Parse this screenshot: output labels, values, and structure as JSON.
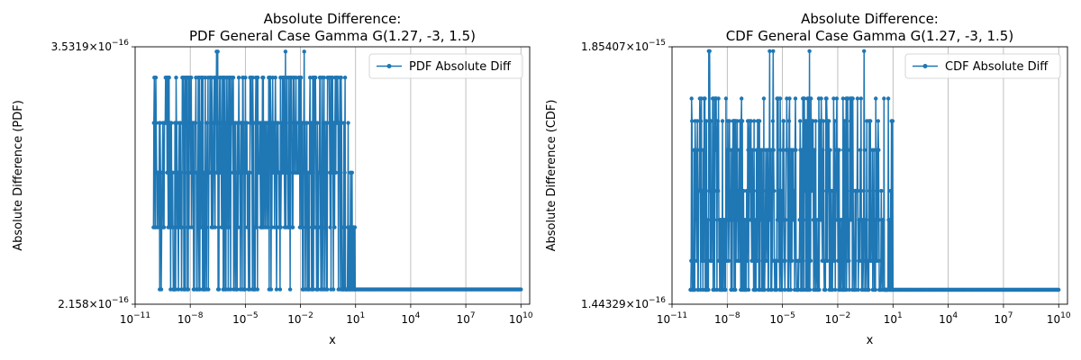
{
  "chart_data": [
    {
      "type": "line",
      "title_line1": "Absolute Difference:",
      "title_line2": "PDF General Case Gamma G(1.27, -3, 1.5)",
      "xlabel": "x",
      "ylabel": "Absolute Difference (PDF)",
      "xscale": "log",
      "yscale": "log",
      "xlim": [
        1e-11,
        30000000000.0
      ],
      "ylim": [
        2.158e-16,
        3.5319e-16
      ],
      "xticks": [
        {
          "exp": "-11",
          "value": 1e-11
        },
        {
          "exp": "-8",
          "value": 1e-08
        },
        {
          "exp": "-5",
          "value": 1e-05
        },
        {
          "exp": "-2",
          "value": 0.01
        },
        {
          "exp": "1",
          "value": 10
        },
        {
          "exp": "4",
          "value": 10000.0
        },
        {
          "exp": "7",
          "value": 10000000.0
        },
        {
          "exp": "10",
          "value": 10000000000.0
        }
      ],
      "yticks": [
        {
          "mantissa": "2.158",
          "exp": "-16",
          "value": 2.158e-16
        },
        {
          "mantissa": "3.5319",
          "exp": "-16",
          "value": 3.5319e-16
        }
      ],
      "grid": "vertical",
      "legend": "top-right",
      "color": "#1f77b4",
      "series": [
        {
          "name": "PDF Absolute Diff",
          "x_range": [
            1e-10,
            10000000000.0
          ],
          "active_region_end": 10,
          "baseline": 2.22e-16,
          "levels": [
            2.22e-16,
            2.5e-16,
            2.776e-16,
            3.053e-16,
            3.33e-16
          ],
          "peak": 3.5e-16,
          "tail_value": 2.22e-16
        }
      ]
    },
    {
      "type": "line",
      "title_line1": "Absolute Difference:",
      "title_line2": "CDF General Case Gamma G(1.27, -3, 1.5)",
      "xlabel": "x",
      "ylabel": "Absolute Difference (CDF)",
      "xscale": "log",
      "yscale": "log",
      "xlim": [
        1e-11,
        30000000000.0
      ],
      "ylim": [
        1.44329e-16,
        1.85407e-15
      ],
      "xticks": [
        {
          "exp": "-11",
          "value": 1e-11
        },
        {
          "exp": "-8",
          "value": 1e-08
        },
        {
          "exp": "-5",
          "value": 1e-05
        },
        {
          "exp": "-2",
          "value": 0.01
        },
        {
          "exp": "1",
          "value": 10
        },
        {
          "exp": "4",
          "value": 10000.0
        },
        {
          "exp": "7",
          "value": 10000000.0
        },
        {
          "exp": "10",
          "value": 10000000000.0
        }
      ],
      "yticks": [
        {
          "mantissa": "1.44329",
          "exp": "-16",
          "value": 1.44329e-16
        },
        {
          "mantissa": "1.85407",
          "exp": "-15",
          "value": 1.85407e-15
        }
      ],
      "grid": "vertical",
      "legend": "top-right",
      "color": "#1f77b4",
      "series": [
        {
          "name": "CDF Absolute Diff",
          "x_range": [
            1e-10,
            10000000000.0
          ],
          "active_region_end": 10,
          "baseline": 1.665e-16,
          "levels": [
            1.665e-16,
            2.22e-16,
            3.33e-16,
            4.44e-16,
            6.66e-16,
            8.88e-16,
            1.11e-15
          ],
          "peak": 1.776e-15,
          "tail_value": 1.665e-16
        }
      ]
    }
  ]
}
